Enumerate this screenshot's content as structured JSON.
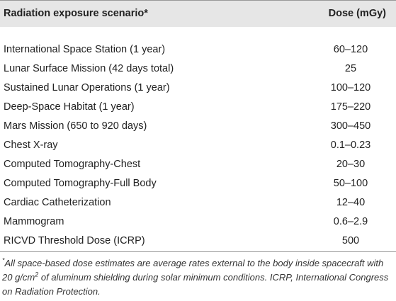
{
  "table": {
    "header": [
      "Radiation exposure scenario*",
      "Dose (mGy)"
    ],
    "rows": [
      [
        "International Space Station (1 year)",
        "60–120"
      ],
      [
        "Lunar Surface Mission (42 days total)",
        "25"
      ],
      [
        "Sustained Lunar Operations (1 year)",
        "100–120"
      ],
      [
        "Deep-Space Habitat (1 year)",
        "175–220"
      ],
      [
        "Mars Mission (650 to 920 days)",
        "300–450"
      ],
      [
        "Chest X-ray",
        "0.1–0.23"
      ],
      [
        "Computed Tomography-Chest",
        "20–30"
      ],
      [
        "Computed Tomography-Full Body",
        "50–100"
      ],
      [
        "Cardiac Catheterization",
        "12–40"
      ],
      [
        "Mammogram",
        "0.6–2.9"
      ],
      [
        "RICVD Threshold Dose (ICRP)",
        "500"
      ]
    ]
  },
  "footnote": {
    "marker": "*",
    "text1": "All space-based dose estimates are average rates external to the body inside spacecraft with 20 g/cm",
    "sup": "2",
    "text2": " of aluminum shielding during solar minimum conditions. ICRP, International Congress on Radiation Protection."
  }
}
